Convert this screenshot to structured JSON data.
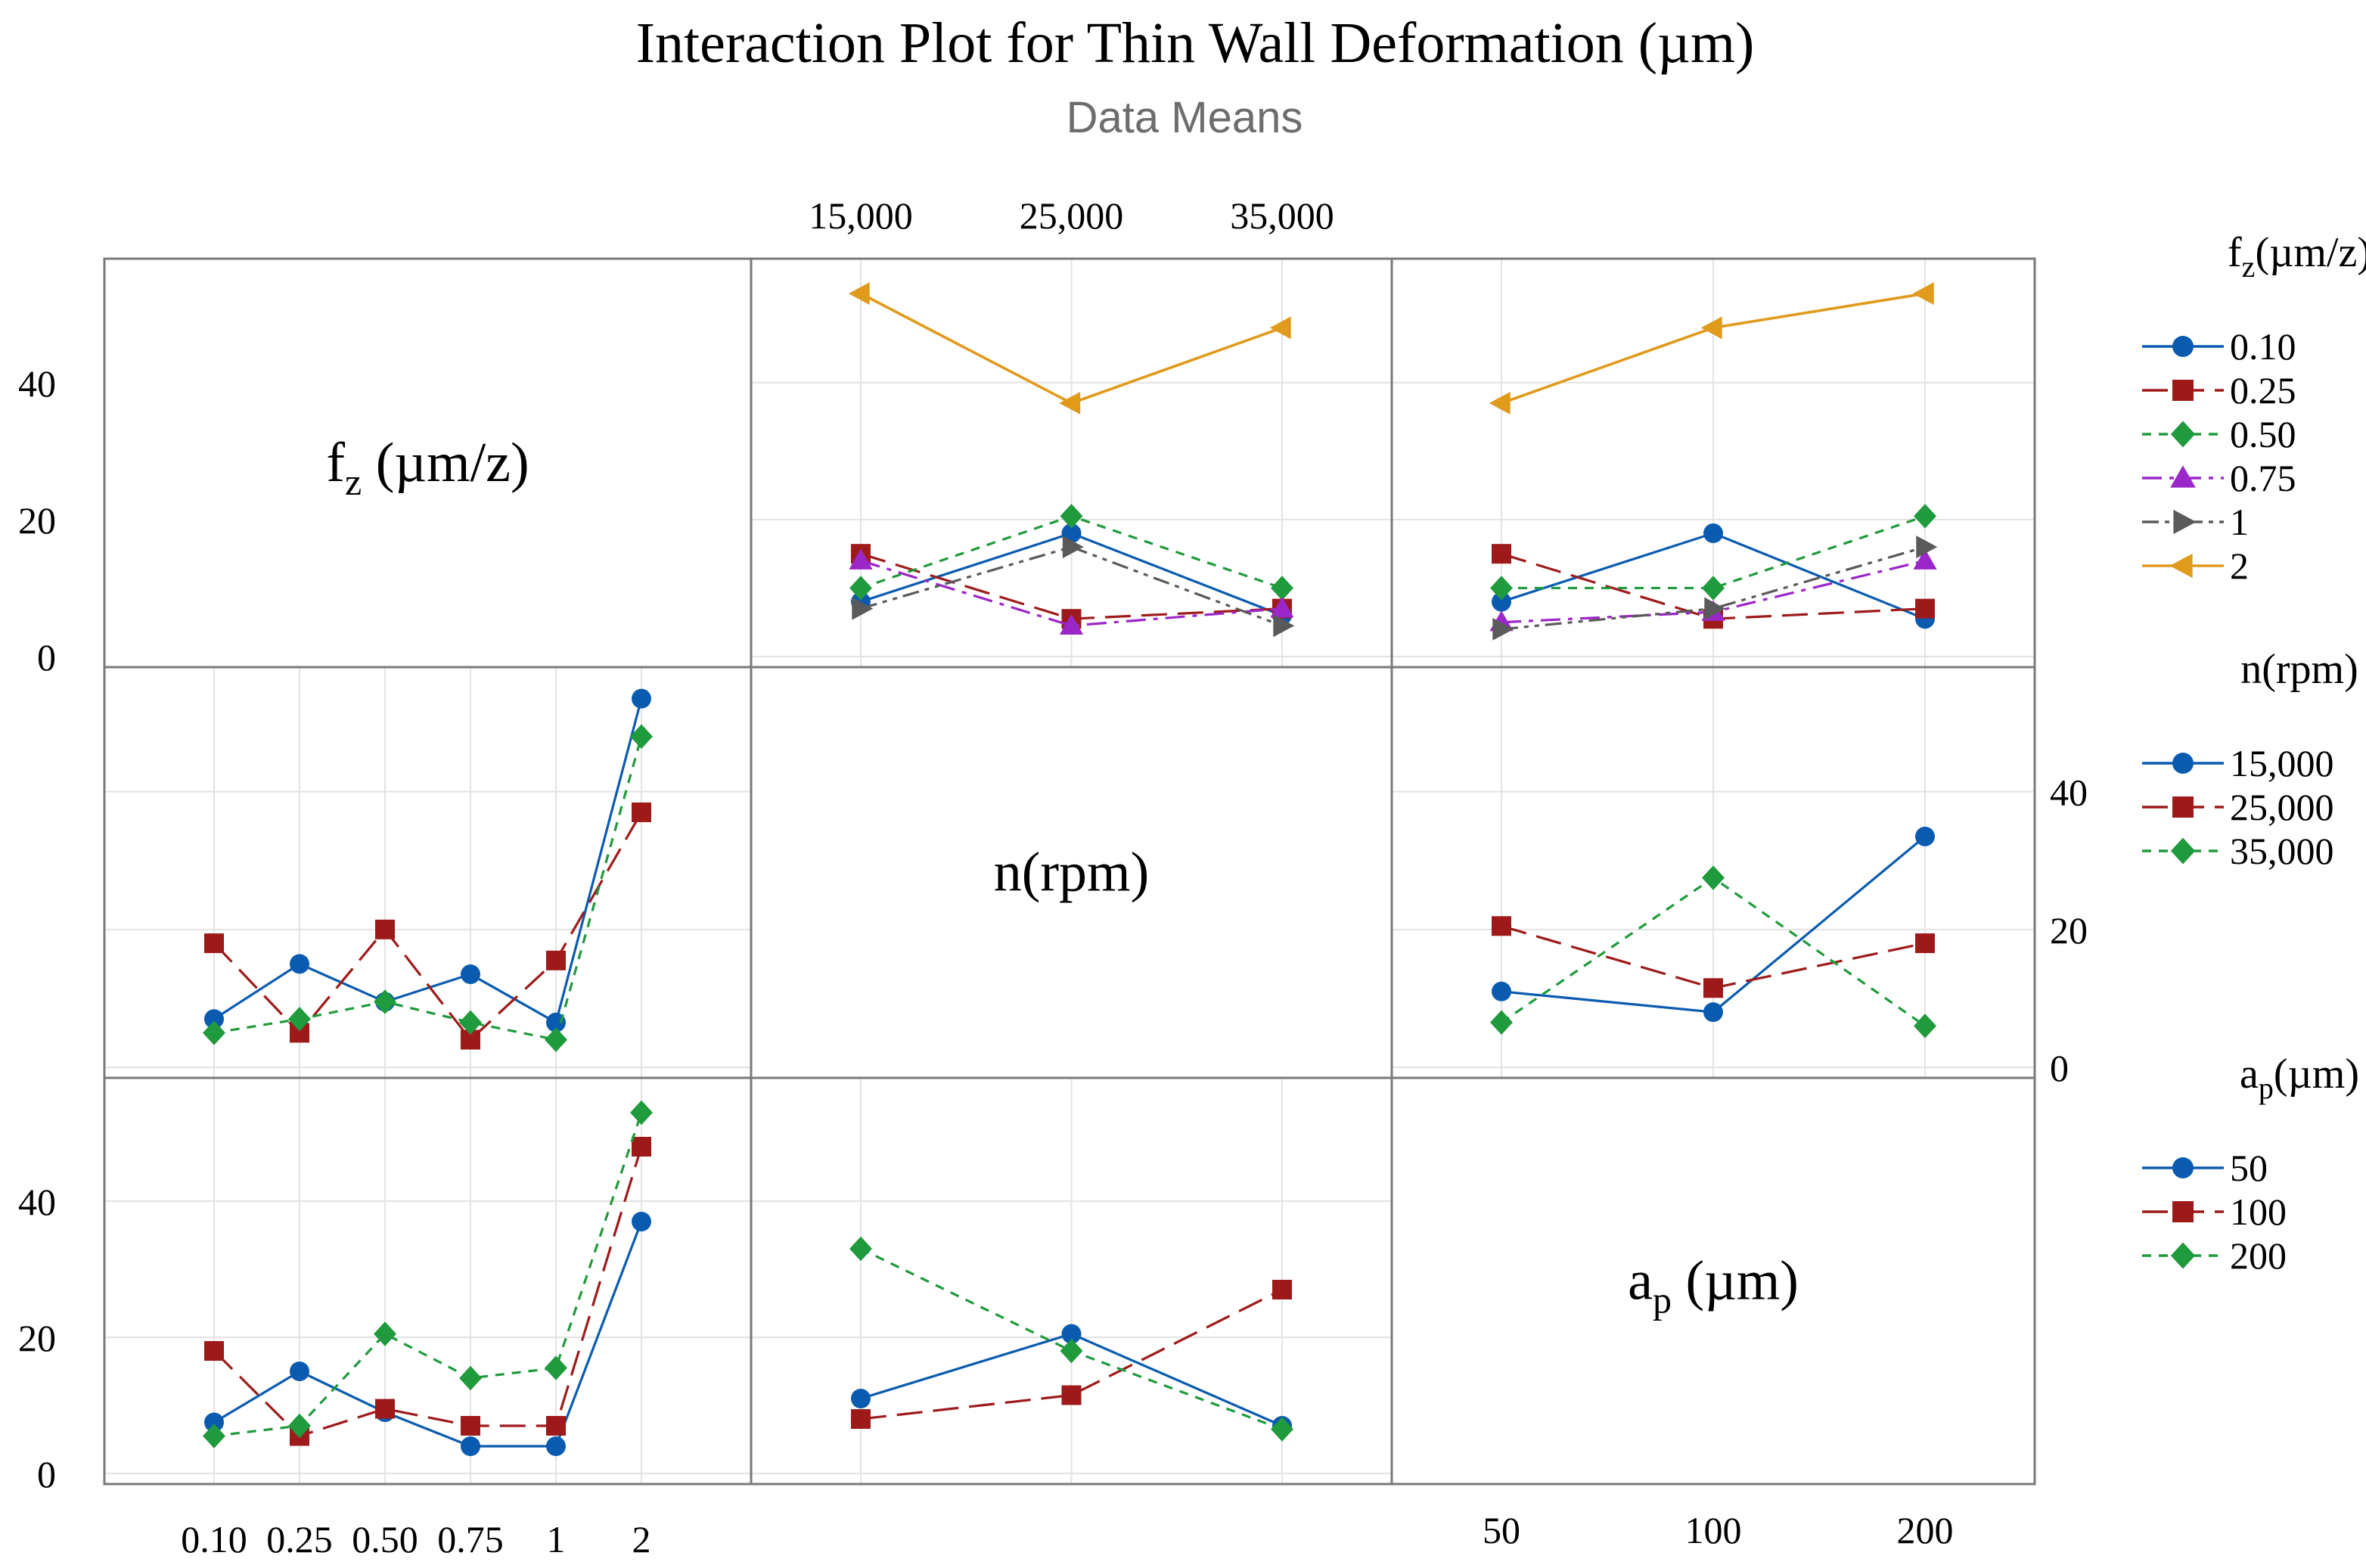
{
  "chart_data": {
    "type": "line",
    "title": "Interaction Plot for Thin Wall Deformation (µm)",
    "subtitle": "Data Means",
    "factors": [
      {
        "key": "fz",
        "label_main": "f",
        "label_sub": "z",
        "label_rest": " (µm/z)",
        "legend_title_main": "f",
        "legend_title_sub": "z",
        "legend_title_rest": "(µm/z)"
      },
      {
        "key": "n",
        "label_main": "n(rpm)",
        "label_sub": "",
        "label_rest": "",
        "legend_title_main": "n(rpm)",
        "legend_title_sub": "",
        "legend_title_rest": ""
      },
      {
        "key": "ap",
        "label_main": "a",
        "label_sub": "p",
        "label_rest": " (µm)",
        "legend_title_main": "a",
        "legend_title_sub": "p",
        "legend_title_rest": "(µm)"
      }
    ],
    "levels": {
      "fz": [
        "0.10",
        "0.25",
        "0.50",
        "0.75",
        "1",
        "2"
      ],
      "n": [
        "15,000",
        "25,000",
        "35,000"
      ],
      "ap": [
        "50",
        "100",
        "200"
      ]
    },
    "ylim": [
      0,
      55
    ],
    "yticks": [
      0,
      20,
      40
    ],
    "series_colors": [
      "#0a5bb0",
      "#9e1a1a",
      "#1f9a3c",
      "#9b27c9",
      "#5a5a5a",
      "#e09a1c"
    ],
    "panels": [
      {
        "row": "fz",
        "col": "n",
        "series": [
          {
            "name": "0.10",
            "values": [
              8,
              18,
              6
            ]
          },
          {
            "name": "0.25",
            "values": [
              15,
              5.5,
              7
            ]
          },
          {
            "name": "0.50",
            "values": [
              10,
              20.5,
              10
            ]
          },
          {
            "name": "0.75",
            "values": [
              14,
              4.5,
              7
            ]
          },
          {
            "name": "1",
            "values": [
              7,
              16,
              4.5
            ]
          },
          {
            "name": "2",
            "values": [
              53,
              37,
              48
            ]
          }
        ]
      },
      {
        "row": "fz",
        "col": "ap",
        "series": [
          {
            "name": "0.10",
            "values": [
              8,
              18,
              5.5
            ]
          },
          {
            "name": "0.25",
            "values": [
              15,
              5.5,
              7
            ]
          },
          {
            "name": "0.50",
            "values": [
              10,
              10,
              20.5
            ]
          },
          {
            "name": "0.75",
            "values": [
              5,
              6.5,
              14
            ]
          },
          {
            "name": "1",
            "values": [
              4,
              7,
              16
            ]
          },
          {
            "name": "2",
            "values": [
              37,
              48,
              53
            ]
          }
        ]
      },
      {
        "row": "n",
        "col": "fz",
        "series": [
          {
            "name": "15,000",
            "values": [
              7,
              15,
              9.5,
              13.5,
              6.5,
              53.5
            ]
          },
          {
            "name": "25,000",
            "values": [
              18,
              5,
              20,
              4,
              15.5,
              37
            ]
          },
          {
            "name": "35,000",
            "values": [
              5,
              7,
              9.5,
              6.5,
              4,
              48
            ]
          }
        ]
      },
      {
        "row": "n",
        "col": "ap",
        "series": [
          {
            "name": "15,000",
            "values": [
              11,
              8,
              33.5
            ]
          },
          {
            "name": "25,000",
            "values": [
              20.5,
              11.5,
              18
            ]
          },
          {
            "name": "35,000",
            "values": [
              6.5,
              27.5,
              6
            ]
          }
        ]
      },
      {
        "row": "ap",
        "col": "fz",
        "series": [
          {
            "name": "50",
            "values": [
              7.5,
              15,
              9,
              4,
              4,
              37
            ]
          },
          {
            "name": "100",
            "values": [
              18,
              5.5,
              9.5,
              7,
              7,
              48
            ]
          },
          {
            "name": "200",
            "values": [
              5.5,
              7,
              20.5,
              14,
              15.5,
              53
            ]
          }
        ]
      },
      {
        "row": "ap",
        "col": "n",
        "series": [
          {
            "name": "50",
            "values": [
              11,
              20.5,
              7
            ]
          },
          {
            "name": "100",
            "values": [
              8,
              11.5,
              27
            ]
          },
          {
            "name": "200",
            "values": [
              33,
              18,
              6.5
            ]
          }
        ]
      }
    ],
    "legends": [
      {
        "factor": "fz",
        "entries": [
          "0.10",
          "0.25",
          "0.50",
          "0.75",
          "1",
          "2"
        ]
      },
      {
        "factor": "n",
        "entries": [
          "15,000",
          "25,000",
          "35,000"
        ]
      },
      {
        "factor": "ap",
        "entries": [
          "50",
          "100",
          "200"
        ]
      }
    ]
  }
}
